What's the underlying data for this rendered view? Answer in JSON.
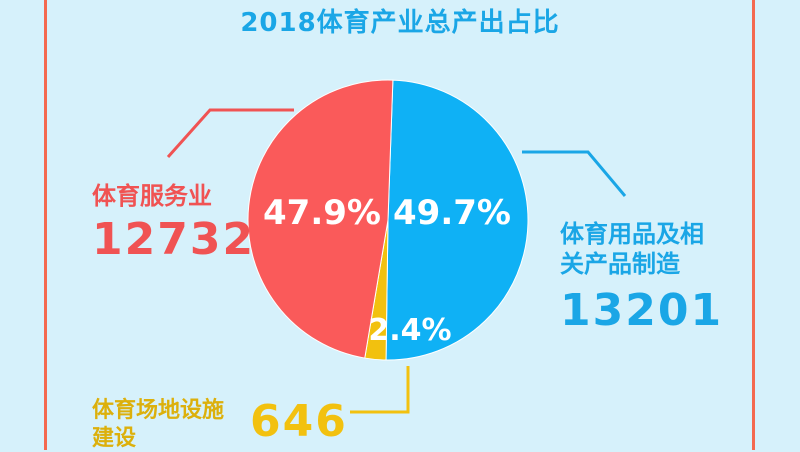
{
  "chart_data": {
    "type": "pie",
    "title": "2018体育产业总产出占比",
    "slices": [
      {
        "name": "体育用品及相关产品制造",
        "value": 13201,
        "percent_label": "49.7%",
        "color": "#0fb1f5",
        "label_color": "#1aa6e6"
      },
      {
        "name": "体育场地设施建设",
        "value": 646,
        "percent_label": "2.4%",
        "color": "#f2c10f",
        "label_color": "#dcb00c"
      },
      {
        "name": "体育服务业",
        "value": 12732,
        "percent_label": "47.9%",
        "color": "#fa5a5a",
        "label_color": "#f05353"
      }
    ]
  },
  "colors": {
    "background": "#d6f1fb",
    "frame": "#f4694f"
  }
}
